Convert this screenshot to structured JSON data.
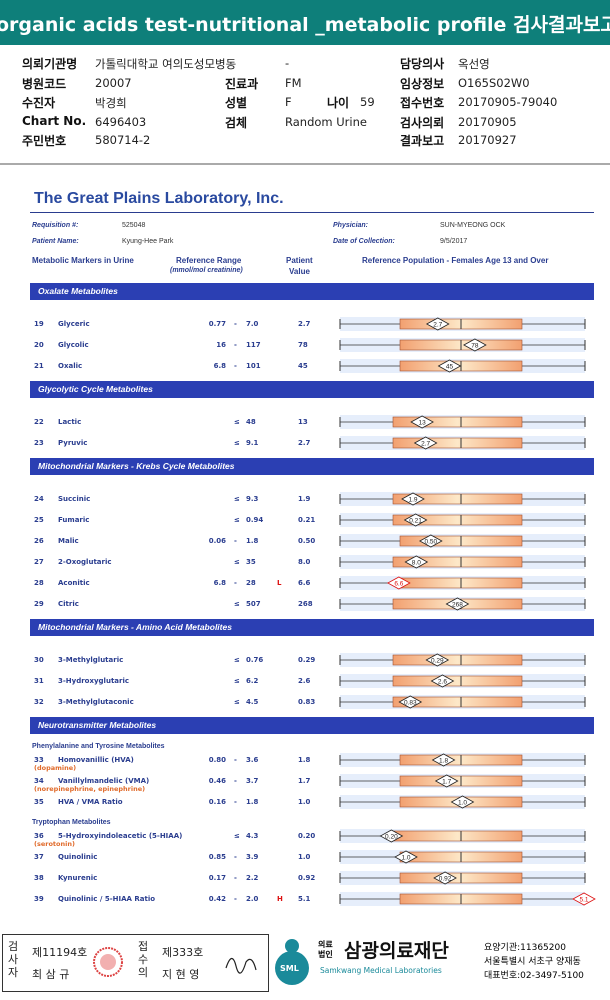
{
  "header": {
    "title": "organic acids test-nutritional _metabolic profile 검사결과보고서"
  },
  "info": {
    "left": [
      {
        "label": "의뢰기관명",
        "value": "가톨릭대학교 여의도성모병동"
      },
      {
        "label": "병원코드",
        "value": "20007"
      },
      {
        "label": "수진자",
        "value": "박경희"
      },
      {
        "label": "Chart No.",
        "value": "6496403"
      },
      {
        "label": "주민번호",
        "value": "580714-2"
      }
    ],
    "middle": [
      {
        "value": "-"
      },
      {
        "label": "진료과",
        "value": "FM"
      },
      {
        "label": "성별",
        "value": "F"
      },
      {
        "label": "검체",
        "value": "Random Urine"
      }
    ],
    "age": {
      "label": "나이",
      "value": "59"
    },
    "right": [
      {
        "label": "담당의사",
        "value": "옥선영"
      },
      {
        "label": "임상정보",
        "value": "O165S02W0"
      },
      {
        "label": "접수번호",
        "value": "20170905-79040"
      },
      {
        "label": "검사의뢰",
        "value": "20170905"
      },
      {
        "label": "결과보고",
        "value": "20170927"
      }
    ]
  },
  "report": {
    "lab": "The Great Plains Laboratory, Inc.",
    "requisition": {
      "label": "Requisition #:",
      "value": "525048"
    },
    "physician": {
      "label": "Physician:",
      "value": "SUN-MYEONG OCK"
    },
    "patient": {
      "label": "Patient Name:",
      "value": "Kyung-Hee Park"
    },
    "collection": {
      "label": "Date of Collection:",
      "value": "9/5/2017"
    },
    "columns": {
      "markers": "Metabolic Markers in Urine",
      "range": "Reference Range",
      "unit": "(mmol/mol creatinine)",
      "patient": "Patient",
      "value": "Value",
      "population": "Reference Population - Females Age 13 and Over"
    },
    "sections": [
      {
        "title": "Oxalate Metabolites",
        "rows": [
          {
            "num": "19",
            "name": "Glyceric",
            "lo": "0.77",
            "op": "-",
            "hi": "7.0",
            "value": "2.7"
          },
          {
            "num": "20",
            "name": "Glycolic",
            "lo": "16",
            "op": "-",
            "hi": "117",
            "value": "78"
          },
          {
            "num": "21",
            "name": "Oxalic",
            "lo": "6.8",
            "op": "-",
            "hi": "101",
            "value": "45"
          }
        ]
      },
      {
        "title": "Glycolytic Cycle Metabolites",
        "rows": [
          {
            "num": "22",
            "name": "Lactic",
            "op": "≤",
            "hi": "48",
            "value": "13"
          },
          {
            "num": "23",
            "name": "Pyruvic",
            "op": "≤",
            "hi": "9.1",
            "value": "2.7"
          }
        ]
      },
      {
        "title": "Mitochondrial Markers - Krebs Cycle Metabolites",
        "rows": [
          {
            "num": "24",
            "name": "Succinic",
            "op": "≤",
            "hi": "9.3",
            "value": "1.9"
          },
          {
            "num": "25",
            "name": "Fumaric",
            "op": "≤",
            "hi": "0.94",
            "value": "0.21"
          },
          {
            "num": "26",
            "name": "Malic",
            "lo": "0.06",
            "op": "-",
            "hi": "1.8",
            "value": "0.50"
          },
          {
            "num": "27",
            "name": "2-Oxoglutaric",
            "op": "≤",
            "hi": "35",
            "value": "8.0"
          },
          {
            "num": "28",
            "name": "Aconitic",
            "lo": "6.8",
            "op": "-",
            "hi": "28",
            "flag": "L",
            "value": "6.6"
          },
          {
            "num": "29",
            "name": "Citric",
            "op": "≤",
            "hi": "507",
            "value": "268"
          }
        ]
      },
      {
        "title": "Mitochondrial Markers - Amino Acid Metabolites",
        "rows": [
          {
            "num": "30",
            "name": "3-Methylglutaric",
            "op": "≤",
            "hi": "0.76",
            "value": "0.29"
          },
          {
            "num": "31",
            "name": "3-Hydroxyglutaric",
            "op": "≤",
            "hi": "6.2",
            "value": "2.6"
          },
          {
            "num": "32",
            "name": "3-Methylglutaconic",
            "op": "≤",
            "hi": "4.5",
            "value": "0.83"
          }
        ]
      },
      {
        "title": "Neurotransmitter Metabolites",
        "groups": [
          {
            "title": "Phenylalanine and Tyrosine Metabolites",
            "rows": [
              {
                "num": "33",
                "name": "Homovanillic (HVA)",
                "note": "(dopamine)",
                "lo": "0.80",
                "op": "-",
                "hi": "3.6",
                "value": "1.8"
              },
              {
                "num": "34",
                "name": "Vanillylmandelic (VMA)",
                "note": "(norepinephrine, epinephrine)",
                "lo": "0.46",
                "op": "-",
                "hi": "3.7",
                "value": "1.7"
              },
              {
                "num": "35",
                "name": "HVA / VMA Ratio",
                "lo": "0.16",
                "op": "-",
                "hi": "1.8",
                "value": "1.0"
              }
            ]
          },
          {
            "title": "Tryptophan Metabolites",
            "rows": [
              {
                "num": "36",
                "name": "5-Hydroxyindoleacetic (5-HIAA)",
                "note": "(serotonin)",
                "op": "≤",
                "hi": "4.3",
                "value": "0.20"
              },
              {
                "num": "37",
                "name": "Quinolinic",
                "lo": "0.85",
                "op": "-",
                "hi": "3.9",
                "value": "1.0"
              },
              {
                "num": "38",
                "name": "Kynurenic",
                "lo": "0.17",
                "op": "-",
                "hi": "2.2",
                "value": "0.92"
              },
              {
                "num": "39",
                "name": "Quinolinic / 5-HIAA Ratio",
                "lo": "0.42",
                "op": "-",
                "hi": "2.0",
                "flag": "H",
                "value": "5.1"
              }
            ]
          }
        ]
      }
    ]
  },
  "footer": {
    "examiner_label": "검사자",
    "examiner_no": "제11194호",
    "examiner_name": "최 삼 규",
    "receiver_label": "접수의",
    "receiver_no": "제333호",
    "receiver_name": "지 현 영",
    "logo": "SML",
    "corp": "의료법인",
    "org": "삼광의료재단",
    "org_en": "Samkwang Medical Laboratories",
    "code": "요양기관:11365200",
    "address": "서울특별시 서초구 양재동",
    "phone": "대표번호:02-3497-5100"
  }
}
